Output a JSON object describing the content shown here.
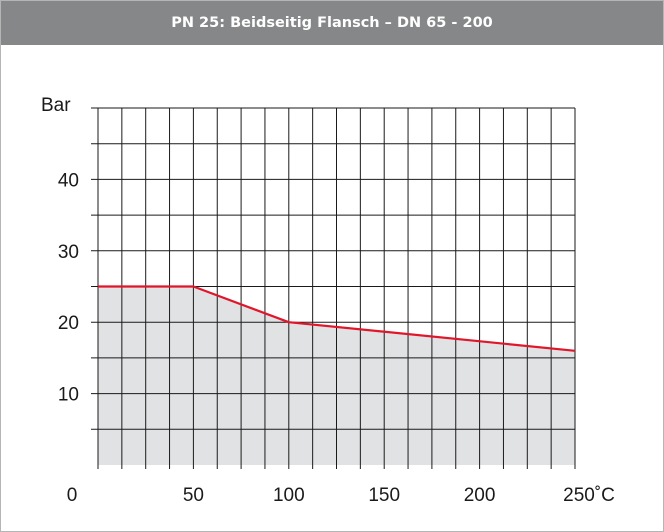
{
  "header": {
    "title": "PN 25:  Beidseitig Flansch – DN 65 - 200"
  },
  "chart_data": {
    "type": "area",
    "title": "PN 25:  Beidseitig Flansch – DN 65 - 200",
    "ylabel": "Bar",
    "xlabel": "",
    "xlim": [
      0,
      250
    ],
    "ylim": [
      0,
      50
    ],
    "x_ticks": [
      {
        "value": 0,
        "label": "0"
      },
      {
        "value": 50,
        "label": "50"
      },
      {
        "value": 100,
        "label": "100"
      },
      {
        "value": 150,
        "label": "150"
      },
      {
        "value": 200,
        "label": "200"
      },
      {
        "value": 250,
        "label": "250˚C"
      }
    ],
    "y_ticks": [
      {
        "value": 10,
        "label": "10"
      },
      {
        "value": 20,
        "label": "20"
      },
      {
        "value": 30,
        "label": "30"
      },
      {
        "value": 40,
        "label": "40"
      }
    ],
    "grid": true,
    "grid_x_step": 12.5,
    "grid_y_step": 5,
    "series": [
      {
        "x": [
          0,
          50,
          100,
          250
        ],
        "y": [
          25,
          25,
          20,
          16
        ]
      }
    ],
    "colors": {
      "line": "#e0162b",
      "fill": "#e1e2e4",
      "grid": "#1a1a1a",
      "header": "#868788"
    }
  }
}
